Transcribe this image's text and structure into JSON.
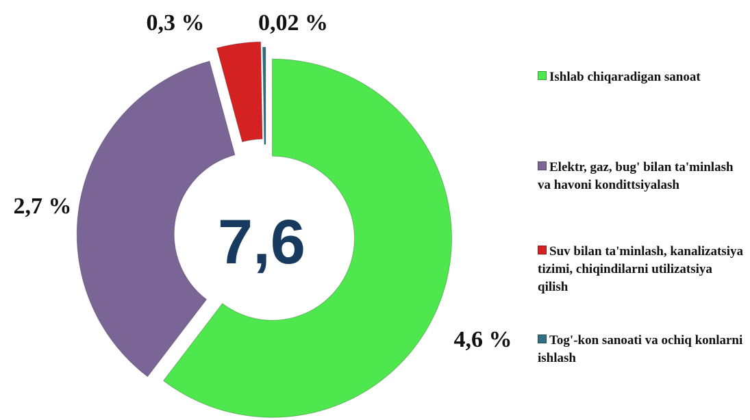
{
  "chart_data": {
    "type": "donut",
    "center_label": "7,6",
    "categories": [
      "Ishlab chiqaradigan sanoat",
      "Elektr, gaz, bug' bilan ta'minlash va havoni kondittsiyalash",
      "Suv bilan ta'minlash, kanalizatsiya tizimi, chiqindilarni utilizatsiya qilish",
      "Tog'-kon sanoati va ochiq konlarni ishlash"
    ],
    "values": [
      4.6,
      2.7,
      0.3,
      0.02
    ],
    "value_labels": [
      "4,6 %",
      "2,7 %",
      "0,3 %",
      "0,02 %"
    ],
    "colors": [
      "#4ee84e",
      "#7b6597",
      "#d42222",
      "#2f6f80"
    ],
    "legend": "right"
  }
}
